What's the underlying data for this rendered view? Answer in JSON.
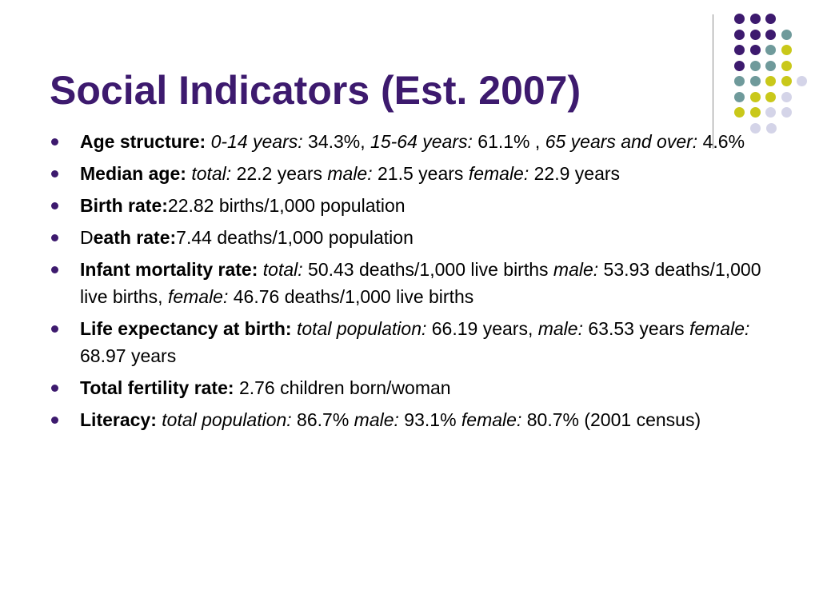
{
  "slide": {
    "title": "Social Indicators (Est. 2007)",
    "colors": {
      "title": "#3d1a6e",
      "bullet": "#3d1a6e",
      "dot_purple": "#3d1a6e",
      "dot_teal": "#6f9a9b",
      "dot_yellow": "#c9c81a",
      "dot_lavender": "#d4d4e8",
      "divider": "#8c8c8c"
    },
    "bullets": [
      {
        "runs": [
          {
            "t": "Age structure: ",
            "s": "b"
          },
          {
            "t": "0-14 years:",
            "s": "i"
          },
          {
            "t": " 34.3%, ",
            "s": ""
          },
          {
            "t": "15-64 years:",
            "s": "i"
          },
          {
            "t": " 61.1% , ",
            "s": ""
          },
          {
            "t": "65 years and over:",
            "s": "i"
          },
          {
            "t": " 4.6%",
            "s": ""
          }
        ]
      },
      {
        "runs": [
          {
            "t": "Median age:  ",
            "s": "b"
          },
          {
            "t": "total:",
            "s": "i"
          },
          {
            "t": " 22.2 years ",
            "s": ""
          },
          {
            "t": "male:",
            "s": "i"
          },
          {
            "t": " 21.5 years  ",
            "s": ""
          },
          {
            "t": "female:",
            "s": "i"
          },
          {
            "t": " 22.9 years",
            "s": ""
          }
        ]
      },
      {
        "runs": [
          {
            "t": "Birth rate:",
            "s": "b"
          },
          {
            "t": "22.82 births/1,000 population",
            "s": ""
          }
        ]
      },
      {
        "runs": [
          {
            "t": "D",
            "s": ""
          },
          {
            "t": "eath rate:",
            "s": "b"
          },
          {
            "t": "7.44 deaths/1,000 population",
            "s": ""
          }
        ]
      },
      {
        "runs": [
          {
            "t": "Infant mortality rate: ",
            "s": "b"
          },
          {
            "t": "total:",
            "s": "i"
          },
          {
            "t": " 50.43 deaths/1,000 live births ",
            "s": ""
          },
          {
            "t": "male:",
            "s": "i"
          },
          {
            "t": " 53.93 deaths/1,000 live births,  ",
            "s": ""
          },
          {
            "t": "female:",
            "s": "i"
          },
          {
            "t": " 46.76 deaths/1,000 live births",
            "s": ""
          }
        ]
      },
      {
        "runs": [
          {
            "t": "Life expectancy at birth: ",
            "s": "b"
          },
          {
            "t": "total population:",
            "s": "i"
          },
          {
            "t": " 66.19 years, ",
            "s": ""
          },
          {
            "t": "male:",
            "s": "i"
          },
          {
            "t": " 63.53 years ",
            "s": ""
          },
          {
            "t": "female:",
            "s": "i"
          },
          {
            "t": " 68.97 years",
            "s": ""
          }
        ]
      },
      {
        "runs": [
          {
            "t": "Total fertility rate: ",
            "s": "b"
          },
          {
            "t": "2.76 children born/woman",
            "s": ""
          }
        ]
      },
      {
        "runs": [
          {
            "t": "Literacy: ",
            "s": "b"
          },
          {
            "t": "total population:",
            "s": "i"
          },
          {
            "t": " 86.7% ",
            "s": ""
          },
          {
            "t": "male:",
            "s": "i"
          },
          {
            "t": " 93.1% ",
            "s": ""
          },
          {
            "t": "female:",
            "s": "i"
          },
          {
            "t": " 80.7% (2001 census)",
            "s": ""
          }
        ]
      }
    ]
  }
}
